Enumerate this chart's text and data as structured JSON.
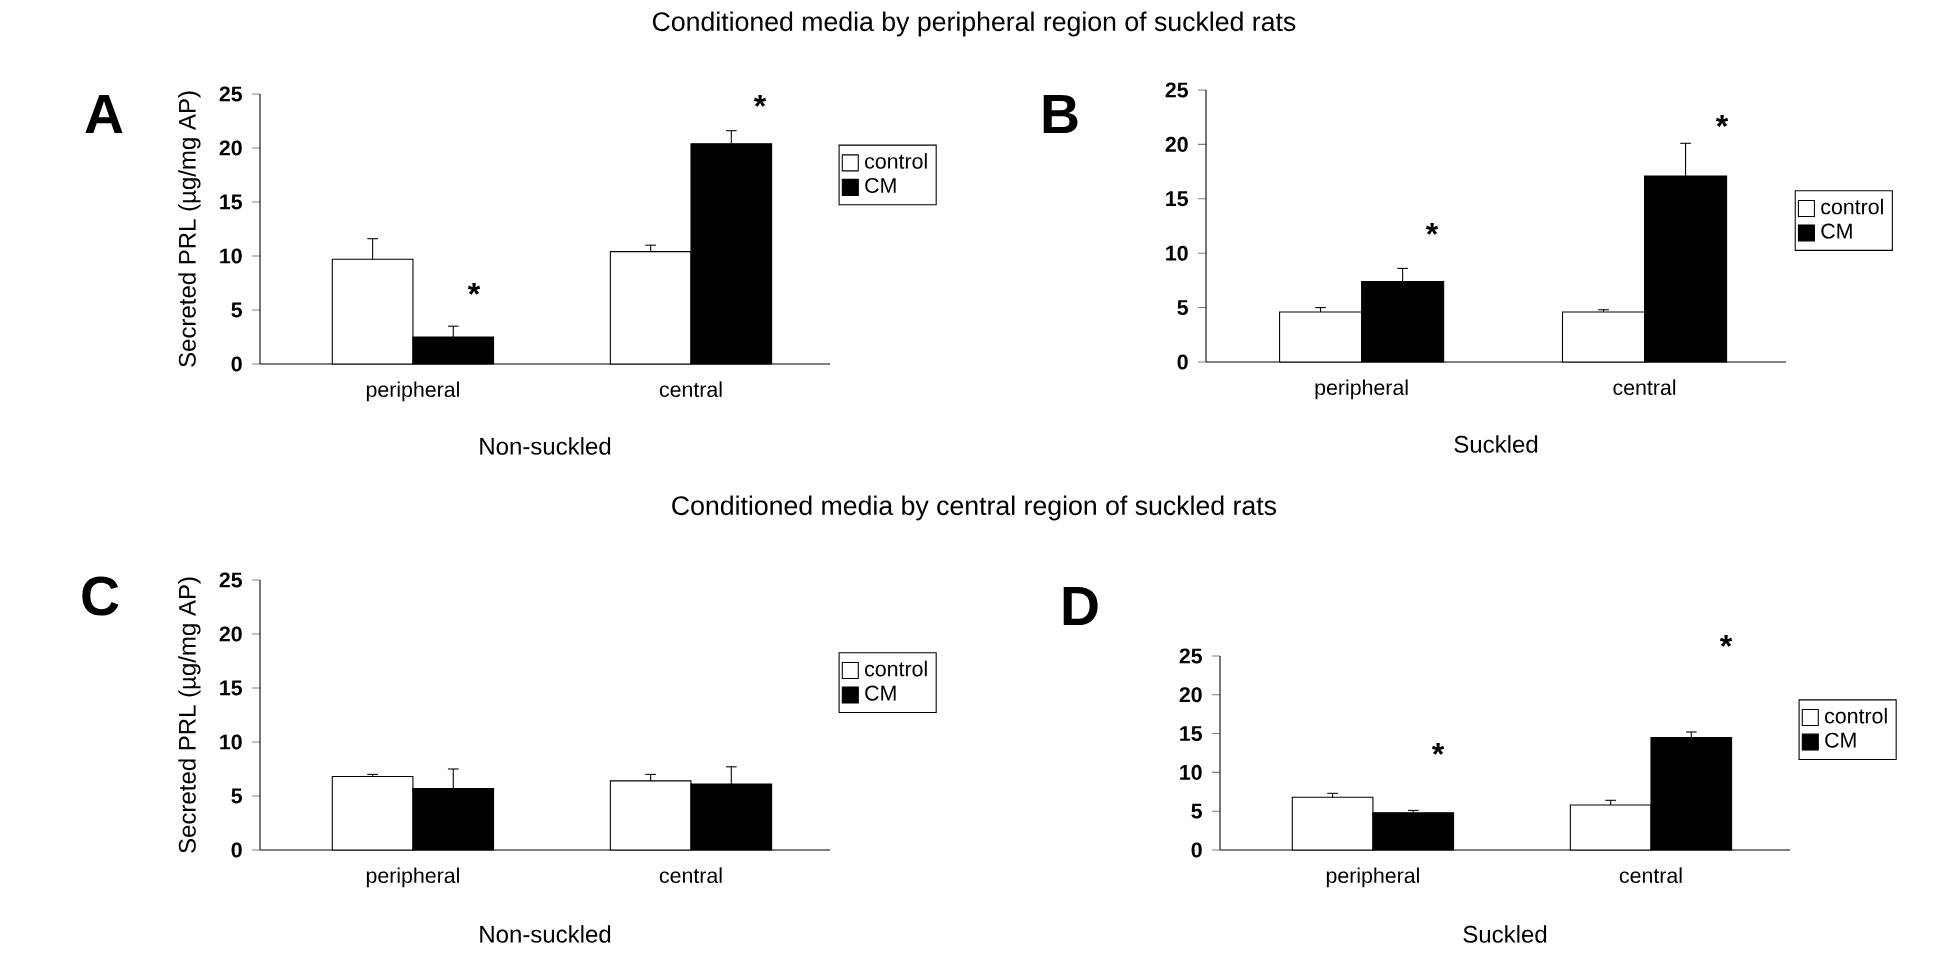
{
  "chart_data": [
    {
      "type": "bar",
      "title": "Conditioned media by peripheral region of suckled rats",
      "xlabel": "Non-suckled",
      "ylabel": "Secreted PRL (µg/mg AP)",
      "categories": [
        "peripheral",
        "central"
      ],
      "series": [
        {
          "name": "control",
          "color": "#ffffff",
          "values": [
            9.7,
            10.4
          ],
          "errors": [
            [
              9.7,
              11.6
            ],
            [
              10.4,
              11.0
            ]
          ]
        },
        {
          "name": "CM",
          "color": "#000000",
          "values": [
            2.5,
            20.4
          ],
          "errors": [
            [
              2.5,
              3.5
            ],
            [
              20.4,
              21.6
            ]
          ]
        }
      ],
      "ylim": [
        0,
        25
      ],
      "yticks": [
        0,
        5,
        10,
        15,
        20,
        25
      ],
      "legend": "right",
      "annotations": [
        "A",
        "*",
        "*"
      ]
    },
    {
      "type": "bar",
      "xlabel": "Suckled",
      "categories": [
        "peripheral",
        "central"
      ],
      "series": [
        {
          "name": "control",
          "color": "#ffffff",
          "values": [
            4.6,
            4.6
          ],
          "errors": [
            [
              4.6,
              5.0
            ],
            [
              4.6,
              4.8
            ]
          ]
        },
        {
          "name": "CM",
          "color": "#000000",
          "values": [
            7.4,
            17.1
          ],
          "errors": [
            [
              7.4,
              8.6
            ],
            [
              17.1,
              20.1
            ]
          ]
        }
      ],
      "ylim": [
        0,
        25
      ],
      "yticks": [
        0,
        5,
        10,
        15,
        20,
        25
      ],
      "legend": "right",
      "annotations": [
        "B",
        "*",
        "*"
      ]
    },
    {
      "type": "bar",
      "title": "Conditioned media by central region of suckled rats",
      "xlabel": "Non-suckled",
      "ylabel": "Secreted PRL (µg/mg AP)",
      "categories": [
        "peripheral",
        "central"
      ],
      "series": [
        {
          "name": "control",
          "color": "#ffffff",
          "values": [
            6.8,
            6.4
          ],
          "errors": [
            [
              6.8,
              7.0
            ],
            [
              6.4,
              7.0
            ]
          ]
        },
        {
          "name": "CM",
          "color": "#000000",
          "values": [
            5.7,
            6.1
          ],
          "errors": [
            [
              5.7,
              7.5
            ],
            [
              6.1,
              7.7
            ]
          ]
        }
      ],
      "ylim": [
        0,
        25
      ],
      "yticks": [
        0,
        5,
        10,
        15,
        20,
        25
      ],
      "legend": "right",
      "annotations": [
        "C"
      ]
    },
    {
      "type": "bar",
      "xlabel": "Suckled",
      "categories": [
        "peripheral",
        "central"
      ],
      "series": [
        {
          "name": "control",
          "color": "#ffffff",
          "values": [
            6.8,
            5.8
          ],
          "errors": [
            [
              6.8,
              7.3
            ],
            [
              5.8,
              6.4
            ]
          ]
        },
        {
          "name": "CM",
          "color": "#000000",
          "values": [
            4.8,
            14.5
          ],
          "errors": [
            [
              4.8,
              5.1
            ],
            [
              14.5,
              15.2
            ]
          ]
        }
      ],
      "ylim": [
        0,
        25
      ],
      "yticks": [
        0,
        5,
        10,
        15,
        20,
        25
      ],
      "legend": "right",
      "annotations": [
        "D",
        "*",
        "*"
      ]
    }
  ]
}
